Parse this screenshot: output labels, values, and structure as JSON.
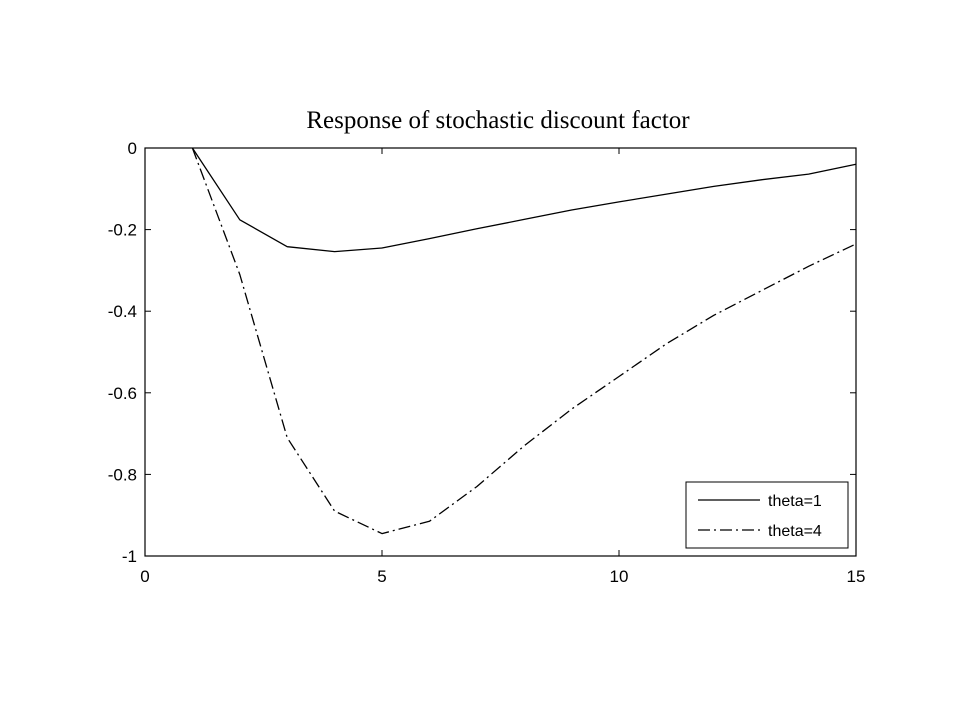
{
  "chart_data": {
    "type": "line",
    "title": "Response of stochastic discount factor",
    "xlabel": "",
    "ylabel": "",
    "xlim": [
      0,
      15
    ],
    "ylim": [
      -1,
      0
    ],
    "xticks": [
      0,
      5,
      10,
      15
    ],
    "xtick_labels": [
      "0",
      "5",
      "10",
      "15"
    ],
    "yticks": [
      0,
      -0.2,
      -0.4,
      -0.6,
      -0.8,
      -1
    ],
    "ytick_labels": [
      "0",
      "-0.2",
      "-0.4",
      "-0.6",
      "-0.8",
      "-1"
    ],
    "grid": false,
    "legend_position": "bottom-right",
    "series": [
      {
        "name": "theta=1",
        "line_style": "solid",
        "color": "#000000",
        "x": [
          1,
          2,
          3,
          4,
          5,
          6,
          7,
          8,
          9,
          10,
          11,
          12,
          13,
          14,
          15
        ],
        "y": [
          0,
          -0.176,
          -0.242,
          -0.254,
          -0.245,
          -0.222,
          -0.198,
          -0.175,
          -0.152,
          -0.132,
          -0.113,
          -0.094,
          -0.078,
          -0.064,
          -0.04
        ]
      },
      {
        "name": "theta=4",
        "line_style": "dashdot",
        "color": "#000000",
        "x": [
          1,
          2,
          3,
          4,
          5,
          6,
          7,
          8,
          9,
          10,
          11,
          12,
          13,
          14,
          15
        ],
        "y": [
          0,
          -0.31,
          -0.71,
          -0.89,
          -0.945,
          -0.915,
          -0.83,
          -0.73,
          -0.64,
          -0.56,
          -0.48,
          -0.41,
          -0.35,
          -0.29,
          -0.235
        ]
      }
    ]
  }
}
